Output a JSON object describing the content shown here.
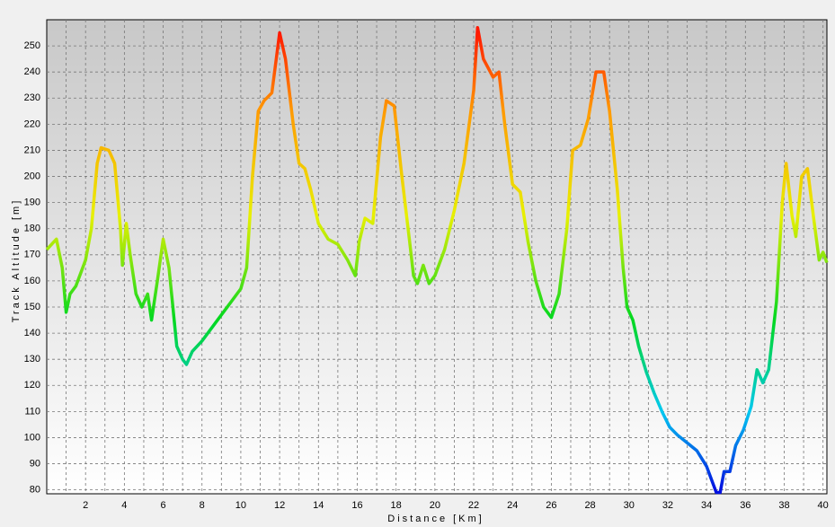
{
  "chart_data": {
    "type": "line",
    "x_label": "Distance [Km]",
    "y_label": "Track Altitude [m]",
    "xlim": [
      0,
      40.2
    ],
    "ylim": [
      78.5,
      260
    ],
    "xticks": [
      2,
      4,
      6,
      8,
      10,
      12,
      14,
      16,
      18,
      20,
      22,
      24,
      26,
      28,
      30,
      32,
      34,
      36,
      38,
      40
    ],
    "x_minor_ticks": [
      1,
      3,
      5,
      7,
      9,
      11,
      13,
      15,
      17,
      19,
      21,
      23,
      25,
      27,
      29,
      31,
      33,
      35,
      37,
      39
    ],
    "yticks": [
      80,
      90,
      100,
      110,
      120,
      130,
      140,
      150,
      160,
      170,
      180,
      190,
      200,
      210,
      220,
      230,
      240,
      250
    ],
    "grid": true,
    "color_scale": [
      {
        "value": 80,
        "color": "#0010e0"
      },
      {
        "value": 110,
        "color": "#00c8f0"
      },
      {
        "value": 145,
        "color": "#00d820"
      },
      {
        "value": 185,
        "color": "#e8f000"
      },
      {
        "value": 225,
        "color": "#ff9a00"
      },
      {
        "value": 255,
        "color": "#ff1800"
      }
    ],
    "x": [
      0,
      0.5,
      0.8,
      1.0,
      1.2,
      1.5,
      2,
      2.3,
      2.6,
      2.8,
      3.2,
      3.5,
      3.8,
      3.9,
      4.1,
      4.3,
      4.6,
      4.9,
      5.2,
      5.4,
      5.7,
      6.0,
      6.3,
      6.7,
      7.0,
      7.2,
      7.5,
      8,
      9,
      10,
      10.3,
      10.6,
      10.9,
      11.2,
      11.6,
      12.0,
      12.3,
      12.7,
      13.0,
      13.3,
      13.6,
      14,
      14.5,
      15,
      15.5,
      15.9,
      16.1,
      16.4,
      16.8,
      17.2,
      17.5,
      17.9,
      18.3,
      18.7,
      18.9,
      19.1,
      19.4,
      19.7,
      20,
      20.5,
      21,
      21.5,
      22,
      22.2,
      22.5,
      23,
      23.3,
      23.6,
      24,
      24.4,
      24.8,
      25.2,
      25.6,
      26,
      26.4,
      26.8,
      27.1,
      27.5,
      27.9,
      28.3,
      28.7,
      29.0,
      29.4,
      29.7,
      29.9,
      30.2,
      30.5,
      30.9,
      31.3,
      31.7,
      32.1,
      32.5,
      33,
      33.5,
      34,
      34.2,
      34.5,
      34.7,
      34.9,
      35.2,
      35.5,
      35.9,
      36.3,
      36.6,
      36.9,
      37.2,
      37.6,
      37.9,
      38.1,
      38.4,
      38.6,
      38.9,
      39.2,
      39.5,
      39.8,
      40.0,
      40.2
    ],
    "values": [
      172,
      176,
      165,
      148,
      155,
      158,
      168,
      180,
      205,
      211,
      210,
      205,
      180,
      166,
      182,
      170,
      155,
      150,
      155,
      145,
      160,
      176,
      165,
      135,
      130,
      128,
      133,
      137,
      147,
      157,
      165,
      200,
      225,
      229,
      232,
      255,
      245,
      220,
      205,
      203,
      195,
      182,
      176,
      174,
      168,
      162,
      175,
      184,
      182,
      215,
      229,
      227,
      200,
      175,
      162,
      159,
      166,
      159,
      162,
      172,
      187,
      205,
      233,
      257,
      245,
      238,
      240,
      220,
      197,
      194,
      175,
      160,
      150,
      146,
      155,
      180,
      210,
      212,
      222,
      240,
      240,
      225,
      195,
      165,
      150,
      145,
      135,
      125,
      117,
      110,
      104,
      101,
      98,
      95,
      89,
      85,
      79,
      79,
      87,
      87,
      97,
      103,
      112,
      126,
      121,
      126,
      152,
      190,
      205,
      185,
      177,
      200,
      203,
      185,
      168,
      171,
      167
    ]
  }
}
